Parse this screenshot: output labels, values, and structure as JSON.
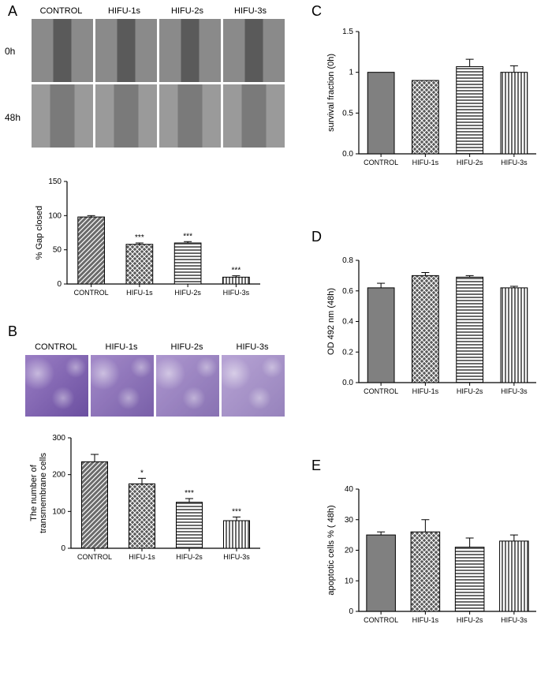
{
  "panelA": {
    "label": "A",
    "row_labels": [
      "0h",
      "48h"
    ],
    "col_labels": [
      "CONTROL",
      "HIFU-1s",
      "HIFU-2s",
      "HIFU-3s"
    ],
    "chart": {
      "type": "bar",
      "ylabel": "% Gap closed",
      "ylim": [
        0,
        150
      ],
      "ytick_step": 50,
      "categories": [
        "CONTROL",
        "HIFU-1s",
        "HIFU-2s",
        "HIFU-3s"
      ],
      "values": [
        98,
        58,
        60,
        10
      ],
      "errors": [
        2,
        2,
        2,
        2
      ],
      "significance": [
        "",
        "***",
        "***",
        "***"
      ],
      "patterns": [
        "diag",
        "check",
        "hstripe",
        "vstripe"
      ],
      "bar_fill": "#444444",
      "bar_width": 0.55,
      "label_fontsize": 11
    }
  },
  "panelB": {
    "label": "B",
    "col_labels": [
      "CONTROL",
      "HIFU-1s",
      "HIFU-2s",
      "HIFU-3s"
    ],
    "chart": {
      "type": "bar",
      "ylabel": "The number of\ntransmembrane cells",
      "ylim": [
        0,
        300
      ],
      "ytick_step": 100,
      "categories": [
        "CONTROL",
        "HIFU-1s",
        "HIFU-2s",
        "HIFU-3s"
      ],
      "values": [
        235,
        175,
        125,
        75
      ],
      "errors": [
        20,
        15,
        10,
        10
      ],
      "significance": [
        "",
        "*",
        "***",
        "***"
      ],
      "patterns": [
        "diag",
        "check",
        "hstripe",
        "vstripe"
      ],
      "bar_fill": "#444444",
      "bar_width": 0.55,
      "label_fontsize": 11
    }
  },
  "panelC": {
    "label": "C",
    "chart": {
      "type": "bar",
      "ylabel": "survival fraction (0h)",
      "ylim": [
        0.0,
        1.5
      ],
      "ytick_step": 0.5,
      "categories": [
        "CONTROL",
        "HIFU-1s",
        "HIFU-2s",
        "HIFU-3s"
      ],
      "values": [
        1.0,
        0.9,
        1.07,
        1.0
      ],
      "errors": [
        0.0,
        0.0,
        0.09,
        0.08
      ],
      "significance": [
        "",
        "",
        "",
        ""
      ],
      "patterns": [
        "solid",
        "check",
        "hstripe",
        "vstripe"
      ],
      "bar_fill": "#808080",
      "bar_width": 0.6,
      "label_fontsize": 11
    }
  },
  "panelD": {
    "label": "D",
    "chart": {
      "type": "bar",
      "ylabel": "OD 492 nm (48h)",
      "ylim": [
        0.0,
        0.8
      ],
      "ytick_step": 0.2,
      "categories": [
        "CONTROL",
        "HIFU-1s",
        "HIFU-2s",
        "HIFU-3s"
      ],
      "values": [
        0.62,
        0.7,
        0.69,
        0.62
      ],
      "errors": [
        0.03,
        0.02,
        0.01,
        0.01
      ],
      "significance": [
        "",
        "",
        "",
        ""
      ],
      "patterns": [
        "solid",
        "check",
        "hstripe",
        "vstripe"
      ],
      "bar_fill": "#808080",
      "bar_width": 0.6,
      "label_fontsize": 11
    }
  },
  "panelE": {
    "label": "E",
    "chart": {
      "type": "bar",
      "ylabel": "apoptotic cells % ( 48h)",
      "ylim": [
        0,
        40
      ],
      "ytick_step": 10,
      "categories": [
        "CONTROL",
        "HIFU-1s",
        "HIFU-2s",
        "HIFU-3s"
      ],
      "values": [
        25,
        26,
        21,
        23
      ],
      "errors": [
        1,
        4,
        3,
        2
      ],
      "significance": [
        "",
        "",
        "",
        ""
      ],
      "patterns": [
        "solid",
        "check",
        "hstripe",
        "vstripe"
      ],
      "bar_fill": "#808080",
      "bar_width": 0.65,
      "label_fontsize": 11
    }
  },
  "colors": {
    "axis": "#000000",
    "background": "#ffffff",
    "bar_stroke": "#000000"
  }
}
